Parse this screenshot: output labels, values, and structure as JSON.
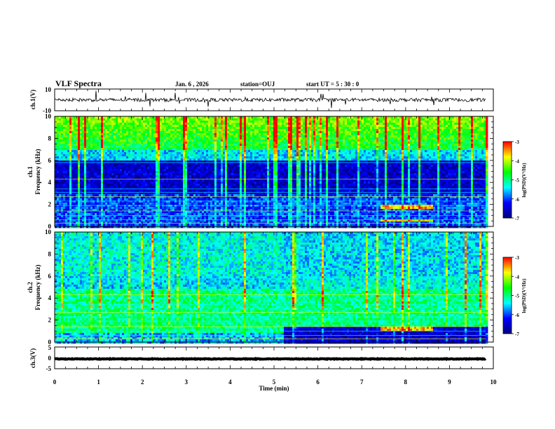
{
  "header": {
    "title": "VLF Spectra",
    "date": "Jan. 6 , 2026",
    "station": "station=OUJ",
    "start_ut": "start UT = 5 : 30 : 0"
  },
  "panels": {
    "ch1_waveform": {
      "ylabel": "ch.1(V)",
      "ytick_top": "10",
      "ytick_bottom": "-10"
    },
    "ch1_spectrogram": {
      "ylabel_line1": "ch.1",
      "ylabel_line2": "Frequency (kHz)"
    },
    "ch2_spectrogram": {
      "ylabel_line1": "ch.2",
      "ylabel_line2": "Frequency (kHz)"
    },
    "ch3_waveform": {
      "ylabel": "ch.3(V)",
      "ytick_top": "5",
      "ytick_mid": "0",
      "ytick_bottom": "-5"
    }
  },
  "colorbar": {
    "label": "log(PSD)(V²/Hz)",
    "ticks": [
      "-3",
      "-4",
      "-5",
      "-6",
      "-7"
    ],
    "stops": [
      "#ff0000",
      "#ffff00",
      "#00ff00",
      "#00ffff",
      "#0000ff",
      "#000080"
    ]
  },
  "xaxis": {
    "label": "Time (min)",
    "ticks": [
      "0",
      "1",
      "2",
      "3",
      "4",
      "5",
      "6",
      "7",
      "8",
      "9",
      "10"
    ]
  },
  "chart_data": [
    {
      "type": "line",
      "title": "ch.1 waveform",
      "ylabel": "ch.1(V)",
      "xlabel": "Time (min)",
      "xlim": [
        0,
        10
      ],
      "ylim": [
        -10,
        10
      ],
      "data_end_min": 9.83,
      "baseline_v": 0,
      "note": "noisy signal with sporadic spikes"
    },
    {
      "type": "heatmap",
      "title": "ch.1 spectrogram",
      "ylabel": "Frequency (kHz)",
      "xlim": [
        0,
        10
      ],
      "ylim": [
        0,
        10
      ],
      "yticks": [
        "0",
        "2",
        "4",
        "6",
        "8",
        "10"
      ],
      "colorbar_range": [
        -7,
        -3
      ],
      "description": "high PSD above 7 kHz with vertical sferic streaks, low PSD 3-6 kHz, horizontal lines below 3 kHz, feature near 1.8 kHz from 7.4 to 8.6 min"
    },
    {
      "type": "heatmap",
      "title": "ch.2 spectrogram",
      "ylabel": "Frequency (kHz)",
      "xlim": [
        0,
        10
      ],
      "ylim": [
        0,
        10
      ],
      "yticks": [
        "0",
        "2",
        "4",
        "6",
        "8",
        "10"
      ],
      "colorbar_range": [
        -7,
        -3
      ],
      "description": "broadband elevated PSD 1-5 kHz, change in character at 5.2 min, feature near 1.3 kHz from 7.4 to 8.6 min"
    },
    {
      "type": "line",
      "title": "ch.3 waveform",
      "ylabel": "ch.3(V)",
      "xlabel": "Time (min)",
      "xlim": [
        0,
        10
      ],
      "ylim": [
        -5,
        5
      ],
      "data_end_min": 9.83,
      "baseline_v": -0.5,
      "note": "thick flat trace"
    }
  ]
}
